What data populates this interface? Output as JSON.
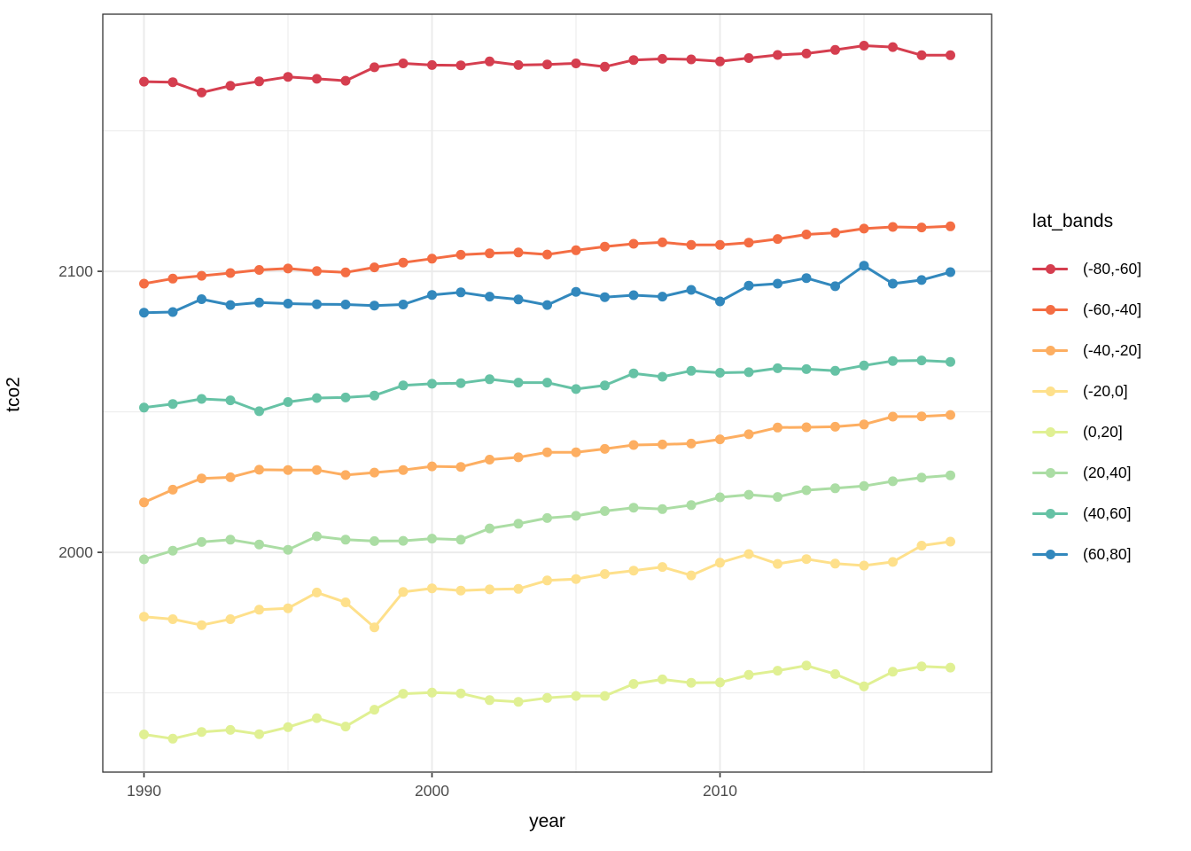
{
  "chart_data": {
    "type": "line",
    "title": "",
    "xlabel": "year",
    "ylabel": "tco2",
    "legend_title": "lat_bands",
    "legend_position": "right",
    "grid": true,
    "xlim": [
      1988.57,
      2019.43
    ],
    "ylim": [
      1921.8,
      2191.5
    ],
    "x_ticks": {
      "major": [
        1990,
        2000,
        2010
      ],
      "minor": [
        1995,
        2005,
        2015
      ]
    },
    "x_tick_labels": [
      "1990",
      "2000",
      "2010"
    ],
    "y_ticks": {
      "major": [
        2000,
        2100
      ],
      "minor": [
        1950,
        2050,
        2150
      ]
    },
    "y_tick_labels": [
      "2000",
      "2100"
    ],
    "x": [
      1990,
      1991,
      1992,
      1993,
      1994,
      1995,
      1996,
      1997,
      1998,
      1999,
      2000,
      2001,
      2002,
      2003,
      2004,
      2005,
      2006,
      2007,
      2008,
      2009,
      2010,
      2011,
      2012,
      2013,
      2014,
      2015,
      2016,
      2017,
      2018
    ],
    "series": [
      {
        "name": "(-80,-60]",
        "color": "#d53e4f",
        "values": [
          2167.5,
          2167.3,
          2163.6,
          2166.0,
          2167.6,
          2169.2,
          2168.5,
          2167.8,
          2172.6,
          2174.0,
          2173.4,
          2173.3,
          2174.7,
          2173.4,
          2173.6,
          2174.0,
          2172.8,
          2175.2,
          2175.6,
          2175.4,
          2174.7,
          2175.9,
          2177.0,
          2177.5,
          2178.8,
          2180.3,
          2179.8,
          2176.9,
          2176.9
        ]
      },
      {
        "name": "(-60,-40]",
        "color": "#f46d43",
        "values": [
          2095.6,
          2097.4,
          2098.4,
          2099.4,
          2100.5,
          2101.0,
          2100.1,
          2099.6,
          2101.4,
          2103.1,
          2104.5,
          2105.9,
          2106.4,
          2106.7,
          2106.0,
          2107.5,
          2108.8,
          2109.8,
          2110.3,
          2109.4,
          2109.4,
          2110.2,
          2111.5,
          2113.1,
          2113.7,
          2115.2,
          2115.8,
          2115.6,
          2116.0
        ]
      },
      {
        "name": "(-40,-20]",
        "color": "#fdae61",
        "values": [
          2017.8,
          2022.3,
          2026.3,
          2026.7,
          2029.4,
          2029.3,
          2029.3,
          2027.5,
          2028.4,
          2029.3,
          2030.6,
          2030.4,
          2033.0,
          2033.8,
          2035.6,
          2035.6,
          2036.8,
          2038.2,
          2038.4,
          2038.7,
          2040.2,
          2042.0,
          2044.4,
          2044.5,
          2044.7,
          2045.5,
          2048.3,
          2048.4,
          2048.9
        ]
      },
      {
        "name": "(-20,0]",
        "color": "#fee08b",
        "values": [
          1977.1,
          1976.2,
          1974.1,
          1976.2,
          1979.6,
          1980.1,
          1985.7,
          1982.2,
          1973.3,
          1985.9,
          1987.2,
          1986.4,
          1986.8,
          1987.0,
          1990.0,
          1990.5,
          1992.3,
          1993.5,
          1994.8,
          1991.8,
          1996.3,
          1999.4,
          1995.9,
          1997.6,
          1996.0,
          1995.3,
          1996.6,
          2002.4,
          2003.8
        ]
      },
      {
        "name": "(0,20]",
        "color": "#e0f093",
        "values": [
          1935.2,
          1933.7,
          1936.1,
          1936.8,
          1935.3,
          1937.8,
          1941.0,
          1938.0,
          1944.0,
          1949.7,
          1950.1,
          1949.8,
          1947.4,
          1946.8,
          1948.2,
          1948.9,
          1948.9,
          1953.2,
          1954.8,
          1953.6,
          1953.7,
          1956.4,
          1957.9,
          1959.7,
          1956.7,
          1952.3,
          1957.5,
          1959.4,
          1959.0
        ]
      },
      {
        "name": "(20,40]",
        "color": "#abdda4",
        "values": [
          1997.5,
          2000.6,
          2003.7,
          2004.5,
          2002.8,
          2000.9,
          2005.7,
          2004.5,
          2004.0,
          2004.1,
          2004.9,
          2004.5,
          2008.5,
          2010.2,
          2012.2,
          2013.0,
          2014.7,
          2015.9,
          2015.4,
          2016.8,
          2019.6,
          2020.5,
          2019.7,
          2022.1,
          2022.8,
          2023.6,
          2025.3,
          2026.6,
          2027.4
        ]
      },
      {
        "name": "(40,60]",
        "color": "#66c2a5",
        "values": [
          2051.5,
          2052.8,
          2054.6,
          2054.1,
          2050.2,
          2053.5,
          2054.9,
          2055.1,
          2055.8,
          2059.4,
          2060.0,
          2060.2,
          2061.6,
          2060.4,
          2060.4,
          2058.1,
          2059.4,
          2063.7,
          2062.5,
          2064.6,
          2063.9,
          2064.1,
          2065.5,
          2065.2,
          2064.6,
          2066.5,
          2068.1,
          2068.3,
          2067.8
        ]
      },
      {
        "name": "(60,80]",
        "color": "#3288bd",
        "values": [
          2085.3,
          2085.5,
          2090.1,
          2088.0,
          2088.9,
          2088.5,
          2088.3,
          2088.2,
          2087.8,
          2088.2,
          2091.6,
          2092.5,
          2091.0,
          2090.0,
          2088.0,
          2092.7,
          2090.8,
          2091.5,
          2091.0,
          2093.4,
          2089.3,
          2094.9,
          2095.6,
          2097.6,
          2094.7,
          2102.0,
          2095.6,
          2096.9,
          2099.7
        ]
      }
    ]
  },
  "colors": {
    "panel_background": "#ffffff",
    "grid_major": "#ebebeb",
    "grid_minor": "#ebebeb",
    "panel_border": "#333333",
    "tick_mark": "#333333",
    "tick_label": "#4d4d4d",
    "axis_title": "#000000",
    "legend_text": "#000000"
  }
}
